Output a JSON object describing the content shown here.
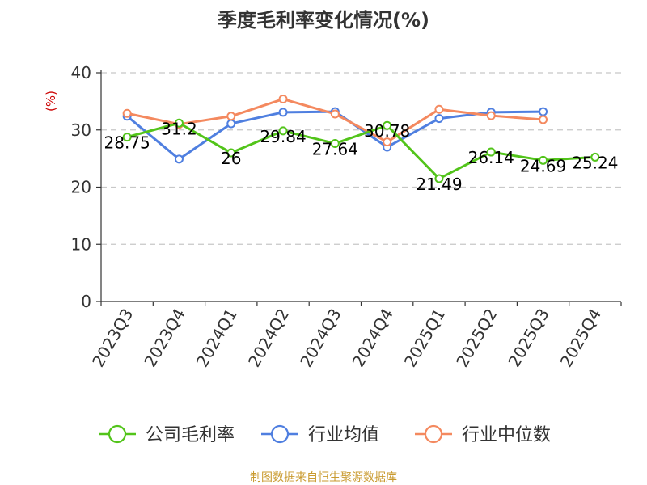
{
  "chart_data": {
    "type": "line",
    "title": "季度毛利率变化情况(%)",
    "ylabel": "(%)",
    "ylim": [
      0,
      40
    ],
    "yticks": [
      0,
      10,
      20,
      30,
      40
    ],
    "grid": true,
    "legend_position": "bottom",
    "categories": [
      "2023Q3",
      "2023Q4",
      "2024Q1",
      "2024Q2",
      "2024Q3",
      "2024Q4",
      "2025Q1",
      "2025Q2",
      "2025Q3",
      "2025Q4"
    ],
    "series": [
      {
        "name": "公司毛利率",
        "color": "#52c41a",
        "values": [
          28.75,
          31.2,
          26,
          29.84,
          27.64,
          30.78,
          21.49,
          26.14,
          24.69,
          25.24
        ],
        "labels": [
          "28.75",
          "31.2",
          "26",
          "29.84",
          "27.64",
          "30.78",
          "21.49",
          "26.14",
          "24.69",
          "25.24"
        ]
      },
      {
        "name": "行业均值",
        "color": "#4f7fe0",
        "values": [
          32.4,
          24.9,
          31.1,
          33.1,
          33.2,
          27.0,
          32.0,
          33.1,
          33.2,
          null
        ]
      },
      {
        "name": "行业中位数",
        "color": "#f4895f",
        "values": [
          32.9,
          31.0,
          32.4,
          35.4,
          32.8,
          27.9,
          33.6,
          32.5,
          31.8,
          null
        ]
      }
    ]
  },
  "footer": {
    "source": "制图数据来自恒生聚源数据库"
  }
}
